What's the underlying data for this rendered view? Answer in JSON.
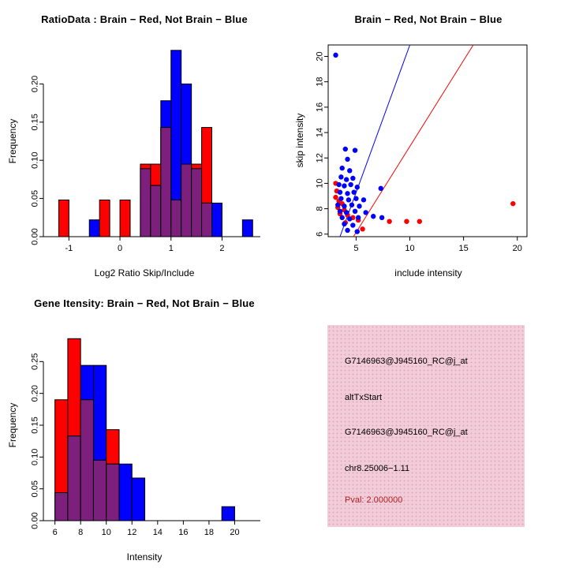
{
  "colors": {
    "brain_red": "#FF0000",
    "not_brain_blue": "#0000FF",
    "overlap_purple": "#7D1F7D",
    "axis_black": "#000000",
    "background": "#FFFFFF"
  },
  "chart_data": [
    {
      "id": "ratio-histogram",
      "type": "bar",
      "subtype": "overlaid-histogram",
      "title": "RatioData : Brain − Red, Not Brain − Blue",
      "xlabel": "Log2 Ratio Skip/Include",
      "ylabel": "Frequency",
      "bin_start": -1.2,
      "bin_width": 0.2,
      "xlim": [
        -1.5,
        2.75
      ],
      "ylim": [
        0,
        0.25
      ],
      "xticks": [
        -1,
        0,
        1,
        2
      ],
      "xticklabels": [
        "-1",
        "0",
        "1",
        "2"
      ],
      "yticks": [
        0,
        0.05,
        0.1,
        0.15,
        0.2
      ],
      "yticklabels": [
        "0.00",
        "0.05",
        "0.10",
        "0.15",
        "0.20"
      ],
      "grid": false,
      "legend": "none",
      "overlap_color": "#7D1F7D",
      "series": [
        {
          "name": "Brain",
          "color": "#FF0000",
          "values": [
            0.048,
            0,
            0,
            0,
            0.048,
            0,
            0.048,
            0,
            0.095,
            0.095,
            0.143,
            0.048,
            0.095,
            0.095,
            0.143,
            0,
            0,
            0,
            0
          ]
        },
        {
          "name": "Not Brain",
          "color": "#0000FF",
          "values": [
            0,
            0,
            0,
            0.022,
            0,
            0,
            0,
            0,
            0.089,
            0.067,
            0.178,
            0.244,
            0.2,
            0.089,
            0.044,
            0.044,
            0,
            0,
            0.022
          ]
        }
      ]
    },
    {
      "id": "skip-include-scatter",
      "type": "scatter",
      "title": "Brain − Red, Not Brain − Blue",
      "xlabel": "include intensity",
      "ylabel": "skip intensity",
      "xlim": [
        2.4,
        20.9
      ],
      "ylim": [
        5.8,
        20.9
      ],
      "xticks": [
        5,
        10,
        15,
        20
      ],
      "xticklabels": [
        "5",
        "10",
        "15",
        "20"
      ],
      "yticks": [
        6,
        8,
        10,
        12,
        14,
        16,
        18,
        20
      ],
      "yticklabels": [
        "6",
        "8",
        "10",
        "12",
        "14",
        "16",
        "18",
        "20"
      ],
      "grid": false,
      "legend": "none",
      "lines": [
        {
          "name": "not-brain-fit",
          "color": "#0000FF",
          "from": [
            3.5,
            5.8
          ],
          "to": [
            10.0,
            20.9
          ]
        },
        {
          "name": "brain-fit",
          "color": "#FF0000",
          "from": [
            4.75,
            5.8
          ],
          "to": [
            15.9,
            20.9
          ]
        }
      ],
      "series": [
        {
          "name": "Brain",
          "color": "#FF0000",
          "points": [
            [
              3.1,
              10.0
            ],
            [
              3.2,
              9.4
            ],
            [
              3.1,
              8.9
            ],
            [
              3.4,
              8.6
            ],
            [
              3.7,
              8.4
            ],
            [
              3.3,
              8.1
            ],
            [
              3.9,
              7.9
            ],
            [
              3.5,
              7.6
            ],
            [
              4.2,
              7.5
            ],
            [
              4.7,
              7.3
            ],
            [
              5.2,
              7.1
            ],
            [
              4.0,
              6.9
            ],
            [
              5.6,
              6.4
            ],
            [
              8.1,
              7.0
            ],
            [
              9.7,
              7.0
            ],
            [
              10.9,
              7.0
            ],
            [
              19.6,
              8.4
            ]
          ]
        },
        {
          "name": "Not Brain",
          "color": "#0000FF",
          "points": [
            [
              3.1,
              20.1
            ],
            [
              4.0,
              12.7
            ],
            [
              4.9,
              12.6
            ],
            [
              4.2,
              11.9
            ],
            [
              3.7,
              11.2
            ],
            [
              4.4,
              11.0
            ],
            [
              3.6,
              10.5
            ],
            [
              4.1,
              10.3
            ],
            [
              4.7,
              10.4
            ],
            [
              3.4,
              9.9
            ],
            [
              3.9,
              9.8
            ],
            [
              4.5,
              9.9
            ],
            [
              5.1,
              9.7
            ],
            [
              7.3,
              9.6
            ],
            [
              3.5,
              9.3
            ],
            [
              4.2,
              9.2
            ],
            [
              4.8,
              9.3
            ],
            [
              3.6,
              8.8
            ],
            [
              4.3,
              8.7
            ],
            [
              5.0,
              8.8
            ],
            [
              5.7,
              8.7
            ],
            [
              3.3,
              8.3
            ],
            [
              3.9,
              8.2
            ],
            [
              4.6,
              8.3
            ],
            [
              5.3,
              8.2
            ],
            [
              3.5,
              7.8
            ],
            [
              4.1,
              7.7
            ],
            [
              4.9,
              7.8
            ],
            [
              5.9,
              7.7
            ],
            [
              3.7,
              7.3
            ],
            [
              4.4,
              7.2
            ],
            [
              5.2,
              7.3
            ],
            [
              6.6,
              7.4
            ],
            [
              7.4,
              7.3
            ],
            [
              3.9,
              6.8
            ],
            [
              4.7,
              6.7
            ],
            [
              4.2,
              6.3
            ],
            [
              5.1,
              6.2
            ]
          ]
        }
      ]
    },
    {
      "id": "gene-intensity-histogram",
      "type": "bar",
      "subtype": "overlaid-histogram",
      "title": "Gene Itensity: Brain − Red, Not Brain − Blue",
      "xlabel": "Intensity",
      "ylabel": "Frequency",
      "bin_start": 6,
      "bin_width": 1,
      "xlim": [
        5.1,
        22.0
      ],
      "ylim": [
        0,
        0.3
      ],
      "xticks": [
        6,
        8,
        10,
        12,
        14,
        16,
        18,
        20
      ],
      "xticklabels": [
        "6",
        "8",
        "10",
        "12",
        "14",
        "16",
        "18",
        "20"
      ],
      "yticks": [
        0,
        0.05,
        0.1,
        0.15,
        0.2,
        0.25
      ],
      "yticklabels": [
        "0.00",
        "0.05",
        "0.10",
        "0.15",
        "0.20",
        "0.25"
      ],
      "grid": false,
      "legend": "none",
      "overlap_color": "#7D1F7D",
      "series": [
        {
          "name": "Brain",
          "color": "#FF0000",
          "values": [
            0.19,
            0.286,
            0.19,
            0.095,
            0.143,
            0,
            0,
            0,
            0,
            0,
            0,
            0,
            0,
            0
          ]
        },
        {
          "name": "Not Brain",
          "color": "#0000FF",
          "values": [
            0.044,
            0.133,
            0.244,
            0.244,
            0.089,
            0.089,
            0.067,
            0,
            0,
            0,
            0,
            0,
            0,
            0.022
          ]
        }
      ]
    }
  ],
  "info_panel": {
    "background": "#F2CCD8",
    "dot_color": "#DFA8BC",
    "lines": [
      {
        "text": "G7146963@J945160_RC@j_at",
        "color": "#000000"
      },
      {
        "text": "altTxStart",
        "color": "#000000"
      },
      {
        "text": "G7146963@J945160_RC@j_at",
        "color": "#000000"
      },
      {
        "text": "chr8.25006−1.11",
        "color": "#000000"
      },
      {
        "text": "Pval: 2.000000",
        "color": "#B22222"
      }
    ]
  }
}
